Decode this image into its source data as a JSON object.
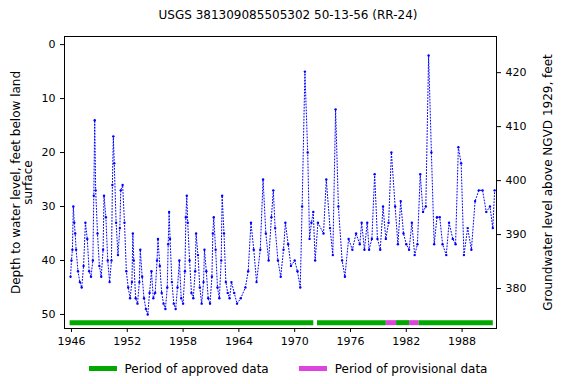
{
  "chart_data": {
    "type": "line",
    "title": "USGS 381309085505302  50-13-56 (RR-24)",
    "y_label": "Depth to water level, feet below land\nsurface",
    "y2_label": "Groundwater level above NGVD 1929, feet",
    "xlim": [
      1945.25,
      1991.7
    ],
    "xticks": [
      1946,
      1952,
      1958,
      1964,
      1970,
      1976,
      1982,
      1988
    ],
    "ylim": [
      52.6,
      -1.5
    ],
    "yticks": [
      0,
      10,
      20,
      30,
      40,
      50
    ],
    "y2lim": [
      372.6,
      426.7
    ],
    "y2ticks": [
      380,
      390,
      400,
      410,
      420
    ],
    "grid": false,
    "x": [
      1945.9,
      1946.0,
      1946.1,
      1946.2,
      1946.3,
      1946.4,
      1946.5,
      1946.7,
      1946.9,
      1947.1,
      1947.3,
      1947.5,
      1947.7,
      1947.9,
      1948.1,
      1948.3,
      1948.4,
      1948.5,
      1948.6,
      1948.8,
      1949.0,
      1949.2,
      1949.4,
      1949.5,
      1949.7,
      1949.9,
      1950.1,
      1950.3,
      1950.4,
      1950.5,
      1950.6,
      1950.8,
      1951.0,
      1951.2,
      1951.3,
      1951.5,
      1951.7,
      1951.9,
      1952.1,
      1952.3,
      1952.5,
      1952.6,
      1952.7,
      1952.9,
      1953.1,
      1953.3,
      1953.4,
      1953.6,
      1953.8,
      1954.0,
      1954.2,
      1954.4,
      1954.6,
      1954.8,
      1955.0,
      1955.2,
      1955.3,
      1955.5,
      1955.7,
      1955.9,
      1956.1,
      1956.3,
      1956.4,
      1956.5,
      1956.6,
      1956.8,
      1957.0,
      1957.2,
      1957.4,
      1957.6,
      1957.8,
      1958.0,
      1958.2,
      1958.3,
      1958.4,
      1958.5,
      1958.7,
      1958.9,
      1959.1,
      1959.3,
      1959.4,
      1959.6,
      1959.8,
      1960.0,
      1960.2,
      1960.3,
      1960.5,
      1960.7,
      1960.9,
      1961.1,
      1961.2,
      1961.3,
      1961.5,
      1961.7,
      1961.9,
      1962.1,
      1962.2,
      1962.4,
      1962.6,
      1962.8,
      1963.0,
      1963.2,
      1963.5,
      1963.8,
      1964.2,
      1964.7,
      1965.0,
      1965.3,
      1965.6,
      1965.9,
      1966.3,
      1966.6,
      1966.9,
      1967.2,
      1967.5,
      1967.7,
      1967.9,
      1968.2,
      1968.5,
      1968.8,
      1969.0,
      1969.3,
      1969.6,
      1970.0,
      1970.3,
      1970.6,
      1970.8,
      1971.1,
      1971.4,
      1971.6,
      1971.8,
      1972.0,
      1972.2,
      1972.5,
      1973.1,
      1973.4,
      1973.8,
      1974.1,
      1974.4,
      1974.7,
      1975.1,
      1975.4,
      1975.8,
      1976.2,
      1976.6,
      1977.0,
      1977.2,
      1977.5,
      1977.8,
      1978.0,
      1978.3,
      1978.6,
      1978.9,
      1979.2,
      1979.5,
      1979.8,
      1980.1,
      1980.4,
      1980.8,
      1981.1,
      1981.4,
      1981.7,
      1982.0,
      1982.3,
      1982.6,
      1982.9,
      1983.2,
      1983.5,
      1983.8,
      1984.1,
      1984.4,
      1984.7,
      1985.0,
      1985.3,
      1985.6,
      1985.9,
      1986.3,
      1986.6,
      1987.0,
      1987.3,
      1987.6,
      1987.9,
      1988.2,
      1988.6,
      1989.0,
      1989.4,
      1989.8,
      1990.2,
      1990.6,
      1991.0,
      1991.3,
      1991.5
    ],
    "series": [
      {
        "name": "Depth to water level",
        "color": "#0000ff",
        "marker": "dot",
        "line_style": "dotted",
        "values": [
          43,
          40,
          38,
          30,
          33,
          35,
          38,
          42,
          44,
          45,
          41,
          33,
          36,
          42,
          43,
          40,
          28,
          14,
          27,
          35,
          41,
          43,
          38,
          28,
          32,
          40,
          44,
          40,
          26,
          17,
          22,
          33,
          39,
          34,
          27,
          26,
          33,
          42,
          45,
          47,
          44,
          35,
          40,
          47,
          48,
          44,
          38,
          43,
          47,
          49,
          50,
          46,
          42,
          47,
          46,
          40,
          36,
          41,
          46,
          48,
          49,
          45,
          37,
          31,
          36,
          44,
          48,
          49,
          45,
          40,
          47,
          48,
          42,
          32,
          28,
          33,
          40,
          46,
          47,
          42,
          35,
          39,
          45,
          48,
          44,
          38,
          42,
          47,
          48,
          43,
          35,
          32,
          38,
          45,
          47,
          40,
          28,
          35,
          44,
          46,
          47,
          44,
          46,
          48,
          47,
          45,
          42,
          33,
          38,
          44,
          38,
          25,
          35,
          40,
          32,
          27,
          34,
          40,
          43,
          38,
          33,
          37,
          41,
          40,
          42,
          45,
          30,
          5,
          20,
          36,
          33,
          31,
          40,
          33,
          35,
          25,
          34,
          39,
          12,
          30,
          40,
          43,
          36,
          38,
          35,
          37,
          33,
          38,
          33,
          38,
          36,
          24,
          36,
          38,
          30,
          36,
          33,
          20,
          30,
          37,
          29,
          35,
          37,
          38,
          33,
          39,
          37,
          24,
          31,
          30,
          2,
          20,
          37,
          32,
          32,
          37,
          39,
          33,
          36,
          37,
          19,
          22,
          39,
          34,
          38,
          29,
          27,
          27,
          31,
          30,
          34,
          27
        ]
      }
    ],
    "periods": [
      {
        "name": "Period of approved data",
        "color": "#00a800",
        "ranges": [
          [
            1945.8,
            1972.0
          ],
          [
            1972.4,
            1979.8
          ],
          [
            1980.9,
            1982.3
          ],
          [
            1983.3,
            1991.3
          ]
        ]
      },
      {
        "name": "Period of provisional data",
        "color": "#dd44dd",
        "ranges": [
          [
            1979.8,
            1980.9
          ],
          [
            1982.3,
            1983.3
          ]
        ]
      }
    ]
  }
}
